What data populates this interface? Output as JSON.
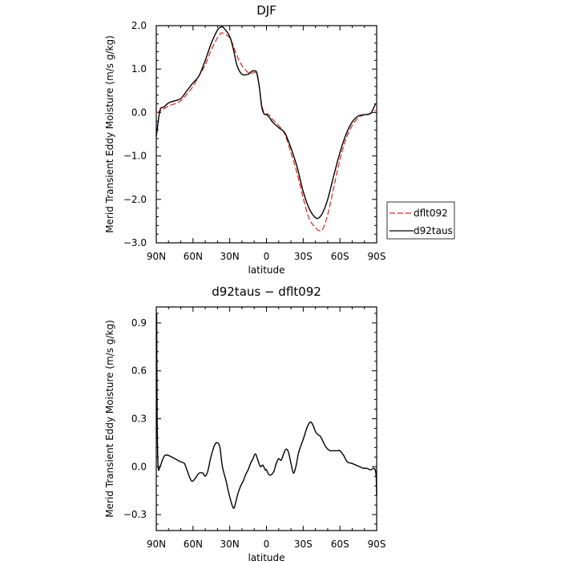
{
  "chart_data": [
    {
      "type": "line",
      "title": "DJF",
      "xlabel": "latitude",
      "ylabel": "Merid Transient Eddy Moisture (m/s g/kg)",
      "x_ticks": [
        90,
        60,
        30,
        0,
        -30,
        -60,
        -90
      ],
      "x_tick_labels": [
        "90N",
        "60N",
        "30N",
        "0",
        "30S",
        "60S",
        "90S"
      ],
      "xlim": [
        90,
        -90
      ],
      "ylim": [
        -3.0,
        2.0
      ],
      "y_ticks": [
        2.0,
        1.0,
        0.0,
        -1.0,
        -2.0,
        -3.0
      ],
      "y_tick_labels": [
        "2.0",
        "1.0",
        "0.0",
        "−1.0",
        "−2.0",
        "−3.0"
      ],
      "grid": false,
      "legend_position": "right",
      "x": [
        90,
        87,
        84,
        80,
        75,
        70,
        65,
        60,
        55,
        50,
        45,
        40,
        37,
        35,
        30,
        27,
        24,
        20,
        15,
        12,
        10,
        8,
        6,
        4,
        2,
        0,
        -2,
        -5,
        -10,
        -15,
        -20,
        -25,
        -30,
        -35,
        -40,
        -43,
        -46,
        -50,
        -55,
        -60,
        -65,
        -70,
        -75,
        -80,
        -85,
        -89
      ],
      "series": [
        {
          "name": "dflt092",
          "color": "#e0201b",
          "dash": "dashed",
          "values": [
            -0.01,
            0.03,
            0.08,
            0.15,
            0.2,
            0.27,
            0.42,
            0.6,
            0.85,
            1.1,
            1.45,
            1.72,
            1.83,
            1.82,
            1.72,
            1.52,
            1.3,
            1.08,
            0.92,
            0.9,
            0.93,
            0.88,
            0.63,
            0.2,
            0.0,
            -0.03,
            -0.05,
            -0.16,
            -0.3,
            -0.5,
            -0.93,
            -1.4,
            -1.97,
            -2.45,
            -2.65,
            -2.72,
            -2.68,
            -2.35,
            -1.72,
            -1.08,
            -0.6,
            -0.3,
            -0.12,
            -0.05,
            -0.02,
            0.05
          ]
        },
        {
          "name": "d92taus",
          "color": "#000000",
          "dash": "solid",
          "values": [
            -0.55,
            0.05,
            0.12,
            0.22,
            0.27,
            0.32,
            0.5,
            0.68,
            0.85,
            1.2,
            1.6,
            1.9,
            1.97,
            1.95,
            1.75,
            1.45,
            1.08,
            0.88,
            0.88,
            0.95,
            0.96,
            0.92,
            0.62,
            0.15,
            -0.03,
            -0.05,
            -0.1,
            -0.22,
            -0.35,
            -0.47,
            -0.82,
            -1.25,
            -1.82,
            -2.22,
            -2.42,
            -2.42,
            -2.3,
            -2.0,
            -1.45,
            -0.92,
            -0.5,
            -0.22,
            -0.08,
            -0.05,
            -0.02,
            0.2
          ]
        }
      ]
    },
    {
      "type": "line",
      "title": "d92taus − dflt092",
      "xlabel": "latitude",
      "ylabel": "Merid Transient Eddy Moisture (m/s g/kg)",
      "x_ticks": [
        90,
        60,
        30,
        0,
        -30,
        -60,
        -90
      ],
      "x_tick_labels": [
        "90N",
        "60N",
        "30N",
        "0",
        "30S",
        "60S",
        "90S"
      ],
      "xlim": [
        90,
        -90
      ],
      "ylim": [
        -0.4,
        1.0
      ],
      "y_ticks": [
        0.9,
        0.6,
        0.3,
        0.0,
        -0.3
      ],
      "y_tick_labels": [
        "0.9",
        "0.6",
        "0.3",
        "0.0",
        "−0.3"
      ],
      "grid": false,
      "x": [
        89.7,
        89.3,
        88.5,
        87,
        85,
        83,
        80,
        75,
        70,
        67,
        65,
        62,
        60,
        57,
        55,
        52,
        50,
        48,
        46,
        44,
        42,
        40,
        38,
        36,
        33,
        30,
        27,
        25,
        23,
        21,
        19,
        17,
        15,
        13,
        11,
        9,
        7,
        5,
        3,
        1,
        0,
        -2,
        -4,
        -6,
        -8,
        -10,
        -12,
        -14,
        -16,
        -18,
        -20,
        -22,
        -24,
        -26,
        -28,
        -30,
        -32,
        -34,
        -36,
        -38,
        -40,
        -42,
        -44,
        -46,
        -48,
        -50,
        -52,
        -54,
        -56,
        -58,
        -60,
        -63,
        -66,
        -70,
        -73,
        -76,
        -79,
        -82,
        -85,
        -88,
        -89.5,
        -90
      ],
      "series": [
        {
          "name": "",
          "color": "#000000",
          "dash": "solid",
          "values": [
            0.96,
            0.3,
            0.0,
            0.0,
            0.04,
            0.07,
            0.07,
            0.05,
            0.03,
            0.02,
            -0.02,
            -0.08,
            -0.09,
            -0.06,
            -0.04,
            -0.04,
            -0.06,
            -0.03,
            0.04,
            0.1,
            0.14,
            0.15,
            0.12,
            0.0,
            -0.09,
            -0.19,
            -0.26,
            -0.22,
            -0.16,
            -0.12,
            -0.09,
            -0.05,
            -0.02,
            0.02,
            0.05,
            0.08,
            0.04,
            0.0,
            0.01,
            -0.02,
            -0.02,
            -0.05,
            -0.05,
            -0.03,
            0.02,
            0.05,
            0.04,
            0.08,
            0.11,
            0.09,
            0.02,
            -0.04,
            0.0,
            0.08,
            0.13,
            0.17,
            0.22,
            0.26,
            0.28,
            0.26,
            0.22,
            0.2,
            0.19,
            0.16,
            0.13,
            0.11,
            0.1,
            0.1,
            0.1,
            0.1,
            0.1,
            0.07,
            0.03,
            0.02,
            0.01,
            0.0,
            -0.01,
            -0.01,
            -0.02,
            -0.01,
            -0.05,
            -0.18
          ]
        }
      ]
    }
  ]
}
